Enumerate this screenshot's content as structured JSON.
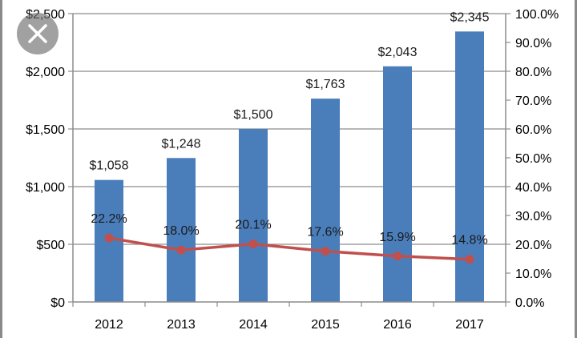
{
  "chart_data": {
    "type": "bar",
    "categories": [
      "2012",
      "2013",
      "2014",
      "2015",
      "2016",
      "2017"
    ],
    "series": [
      {
        "type": "bar",
        "axis": "left",
        "color": "#4a7ebb",
        "values": [
          1058,
          1248,
          1500,
          1763,
          2043,
          2345
        ],
        "labels": [
          "$1,058",
          "$1,248",
          "$1,500",
          "$1,763",
          "$2,043",
          "$2,345"
        ]
      },
      {
        "type": "line",
        "axis": "right",
        "color": "#c0504d",
        "values": [
          22.2,
          18.0,
          20.1,
          17.6,
          15.9,
          14.8
        ],
        "labels": [
          "22.2%",
          "18.0%",
          "20.1%",
          "17.6%",
          "15.9%",
          "14.8%"
        ]
      }
    ],
    "y_left": {
      "min": 0,
      "max": 2500,
      "ticks": [
        0,
        500,
        1000,
        1500,
        2000,
        2500
      ],
      "tick_labels": [
        "$0",
        "$500",
        "$1,000",
        "$1,500",
        "$2,000",
        "$2,500"
      ]
    },
    "y_right": {
      "min": 0,
      "max": 100,
      "ticks": [
        0,
        10,
        20,
        30,
        40,
        50,
        60,
        70,
        80,
        90,
        100
      ],
      "tick_labels": [
        "0.0%",
        "10.0%",
        "20.0%",
        "30.0%",
        "40.0%",
        "50.0%",
        "60.0%",
        "70.0%",
        "80.0%",
        "90.0%",
        "100.0%"
      ]
    },
    "grid": true,
    "title": "",
    "xlabel": "",
    "ylabel": ""
  },
  "overlay": {
    "close_icon": "close-icon"
  }
}
